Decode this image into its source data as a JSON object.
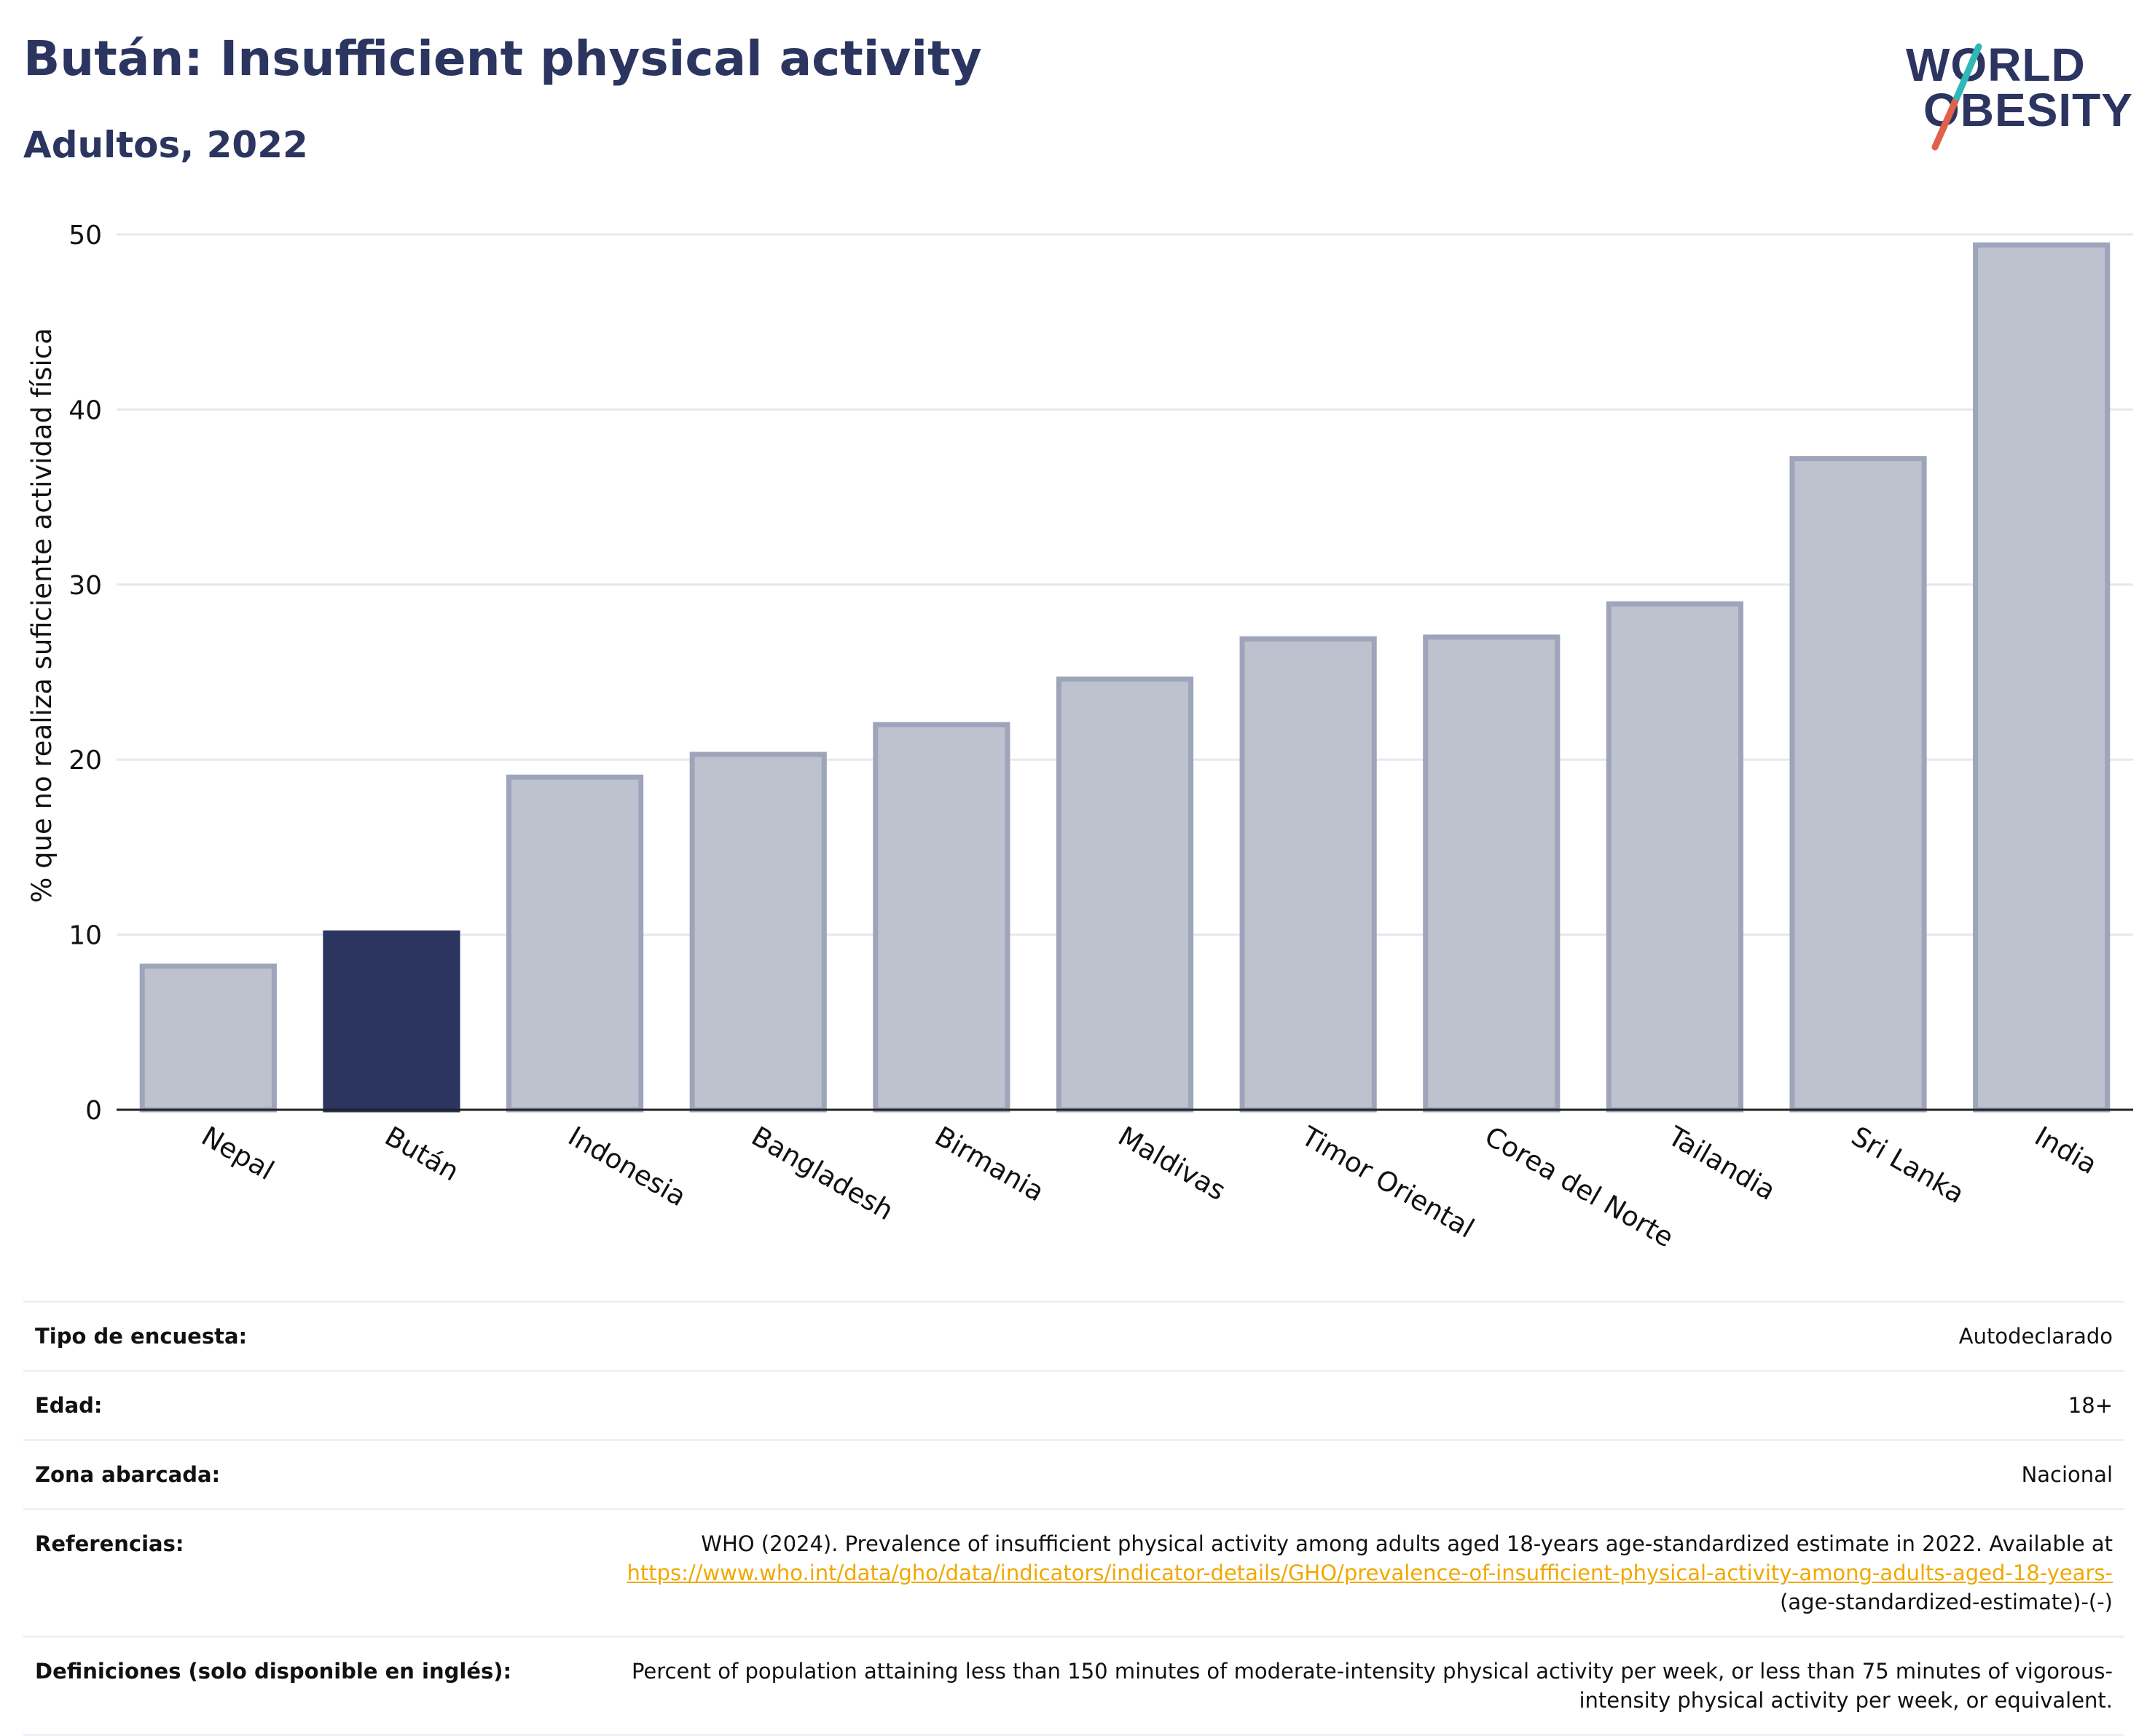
{
  "header": {
    "title": "Bután: Insufficient physical activity",
    "subtitle": "Adultos, 2022"
  },
  "logo": {
    "line1": "WORLD",
    "line2": "OBESITY",
    "colors": {
      "text": "#2b3560",
      "slash_teal": "#2fb8b6",
      "slash_red": "#e0604a"
    }
  },
  "colors": {
    "highlight": "#2b3560",
    "bar": "#bec2cf",
    "bar_border": "#9ea4ba",
    "grid": "#e6e8ee",
    "link": "#f0a800"
  },
  "chart_data": {
    "type": "bar",
    "categories": [
      "Nepal",
      "Bután",
      "Indonesia",
      "Bangladesh",
      "Birmania",
      "Maldivas",
      "Timor Oriental",
      "Corea del Norte",
      "Tailandia",
      "Sri Lanka",
      "India"
    ],
    "values": [
      8.2,
      10.1,
      19.0,
      20.3,
      22.0,
      24.6,
      26.9,
      27.0,
      28.9,
      37.2,
      49.4
    ],
    "highlight": "Bután",
    "ylabel": "% que no realiza suficiente actividad física",
    "xlabel": "",
    "ylim": [
      0,
      50
    ],
    "yticks": [
      0,
      10,
      20,
      30,
      40,
      50
    ],
    "grid": true
  },
  "meta": {
    "rows": [
      {
        "label": "Tipo de encuesta:",
        "value": "Autodeclarado"
      },
      {
        "label": "Edad:",
        "value": "18+"
      },
      {
        "label": "Zona abarcada:",
        "value": "Nacional"
      }
    ],
    "references": {
      "label": "Referencias:",
      "text": "WHO (2024). Prevalence of insufficient physical activity among adults aged 18-years age-standardized estimate in 2022. Available at",
      "link": "https://www.who.int/data/gho/data/indicators/indicator-details/GHO/prevalence-of-insufficient-physical-activity-among-adults-aged-18-years-",
      "suffix": "(age-standardized-estimate)-(-)"
    },
    "definitions": {
      "label": "Definiciones (solo disponible en inglés):",
      "value": "Percent of population attaining less than 150 minutes of moderate-intensity physical activity per week, or less than 75 minutes of vigorous-intensity physical activity per week, or equivalent."
    }
  }
}
